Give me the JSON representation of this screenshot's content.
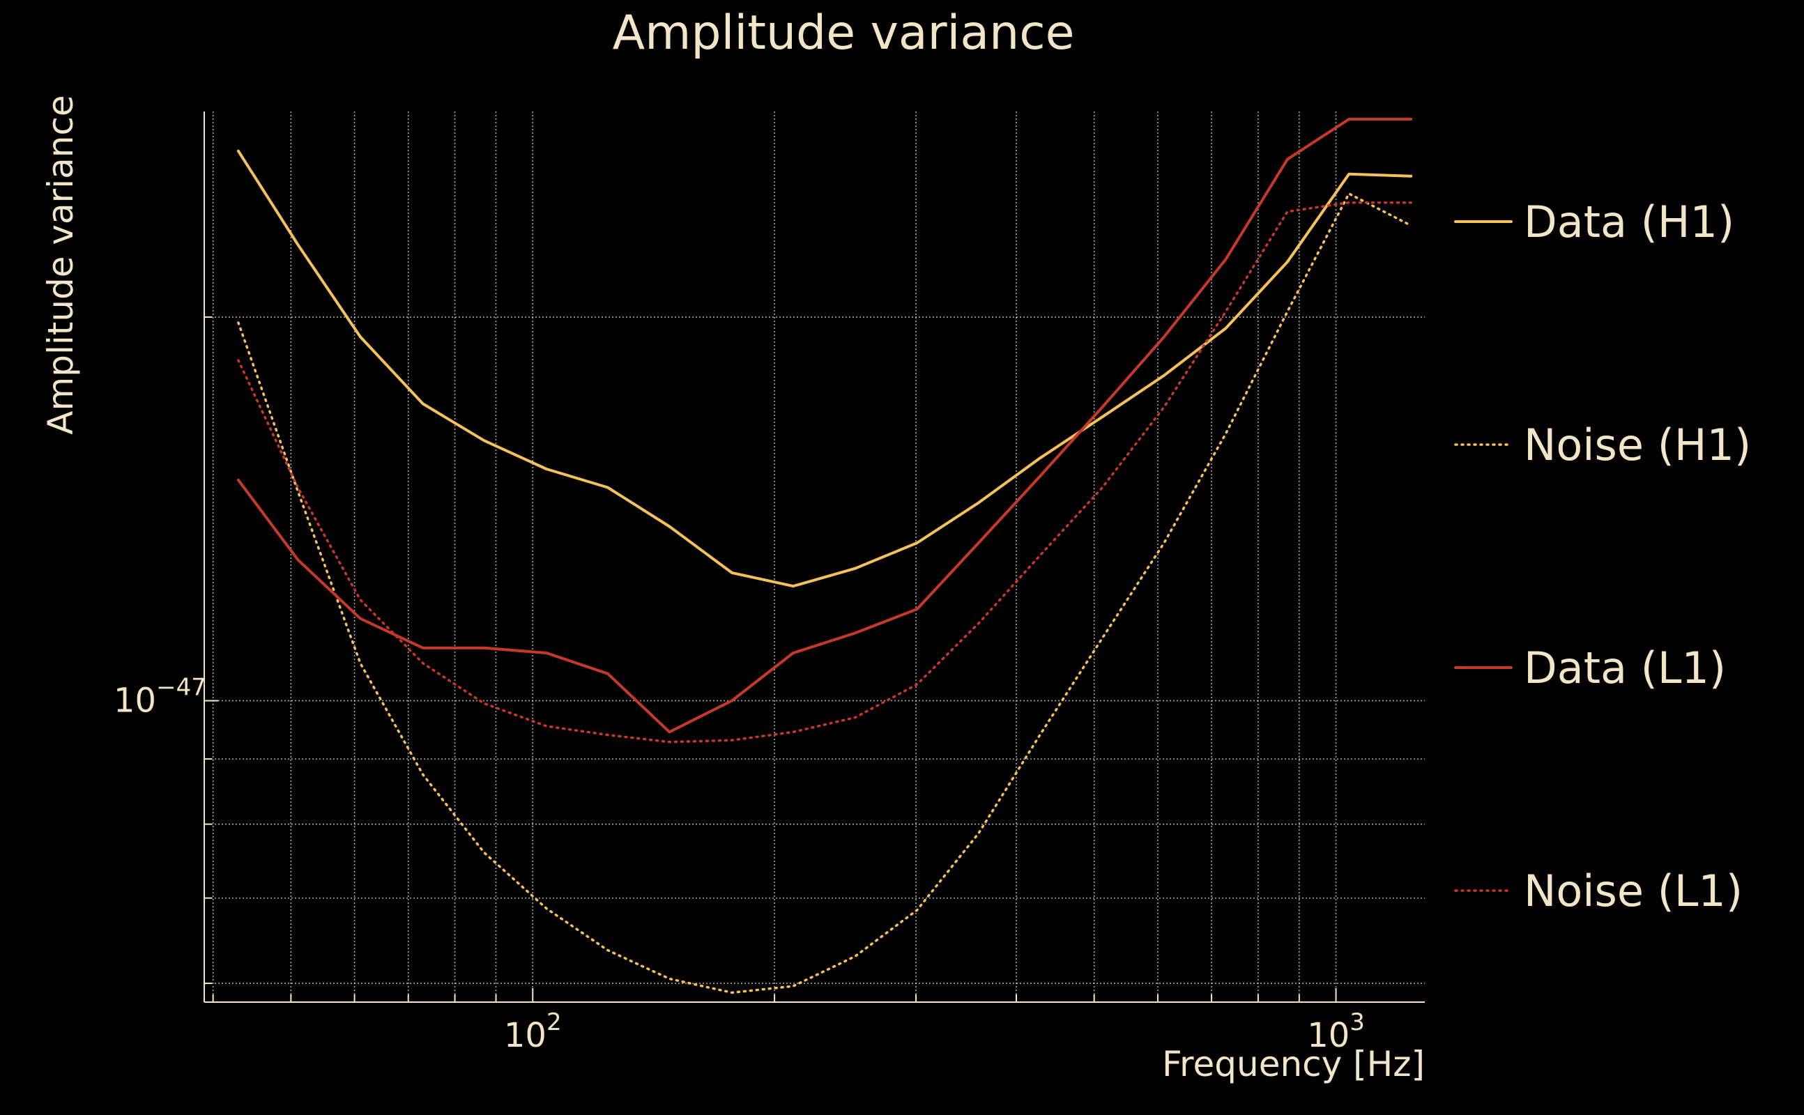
{
  "chart_data": {
    "type": "line",
    "title": "Amplitude variance",
    "xlabel": "Frequency [Hz]",
    "ylabel": "Amplitude variance",
    "x_scale": "log",
    "y_scale": "log",
    "xlim": [
      39,
      1290
    ],
    "ylim": [
      5.8e-48,
      2.9e-47
    ],
    "x_ticks": [
      {
        "value": 100,
        "base": "10",
        "exp": "2"
      },
      {
        "value": 1000,
        "base": "10",
        "exp": "3"
      }
    ],
    "y_ticks": [
      {
        "value": 1e-47,
        "base": "10",
        "exp": "−47"
      }
    ],
    "x_minor_ticks": [
      40,
      50,
      60,
      70,
      80,
      90,
      200,
      300,
      400,
      500,
      600,
      700,
      800,
      900
    ],
    "y_minor_ticks": [
      6e-48,
      7e-48,
      8e-48,
      9e-48,
      2e-47
    ],
    "grid": true,
    "legend_position": "right",
    "x": [
      43,
      51,
      61,
      73,
      87,
      104,
      124,
      148,
      177,
      211,
      252,
      301,
      359,
      428,
      512,
      611,
      729,
      870,
      1038,
      1240
    ],
    "series": [
      {
        "name": "Data (H1)",
        "style": "solid",
        "color": "#f5c15a",
        "values": [
          2.7e-47,
          2.28e-47,
          1.93e-47,
          1.71e-47,
          1.6e-47,
          1.52e-47,
          1.47e-47,
          1.37e-47,
          1.26e-47,
          1.23e-47,
          1.27e-47,
          1.33e-47,
          1.43e-47,
          1.55e-47,
          1.67e-47,
          1.8e-47,
          1.96e-47,
          2.21e-47,
          2.59e-47,
          2.58e-47
        ]
      },
      {
        "name": "Noise (H1)",
        "style": "dotted",
        "color": "#f5c15a",
        "values": [
          1.98e-47,
          1.46e-47,
          1.07e-47,
          8.75e-48,
          7.6e-48,
          6.87e-48,
          6.37e-48,
          6.05e-48,
          5.9e-48,
          5.97e-48,
          6.3e-48,
          6.85e-48,
          7.87e-48,
          9.4e-48,
          1.12e-47,
          1.33e-47,
          1.62e-47,
          2.02e-47,
          2.5e-47,
          2.36e-47
        ]
      },
      {
        "name": "Data (L1)",
        "style": "solid",
        "color": "#c5392b",
        "values": [
          1.49e-47,
          1.29e-47,
          1.16e-47,
          1.1e-47,
          1.1e-47,
          1.09e-47,
          1.05e-47,
          9.45e-48,
          1e-47,
          1.09e-47,
          1.13e-47,
          1.18e-47,
          1.33e-47,
          1.5e-47,
          1.7e-47,
          1.93e-47,
          2.22e-47,
          2.66e-47,
          2.86e-47,
          2.86e-47
        ]
      },
      {
        "name": "Noise (L1)",
        "style": "dotted",
        "color": "#c5392b",
        "values": [
          1.85e-47,
          1.47e-47,
          1.2e-47,
          1.07e-47,
          9.95e-48,
          9.55e-48,
          9.4e-48,
          9.28e-48,
          9.31e-48,
          9.45e-48,
          9.7e-48,
          1.03e-47,
          1.15e-47,
          1.3e-47,
          1.47e-47,
          1.7e-47,
          2.02e-47,
          2.42e-47,
          2.46e-47,
          2.46e-47
        ]
      }
    ]
  }
}
